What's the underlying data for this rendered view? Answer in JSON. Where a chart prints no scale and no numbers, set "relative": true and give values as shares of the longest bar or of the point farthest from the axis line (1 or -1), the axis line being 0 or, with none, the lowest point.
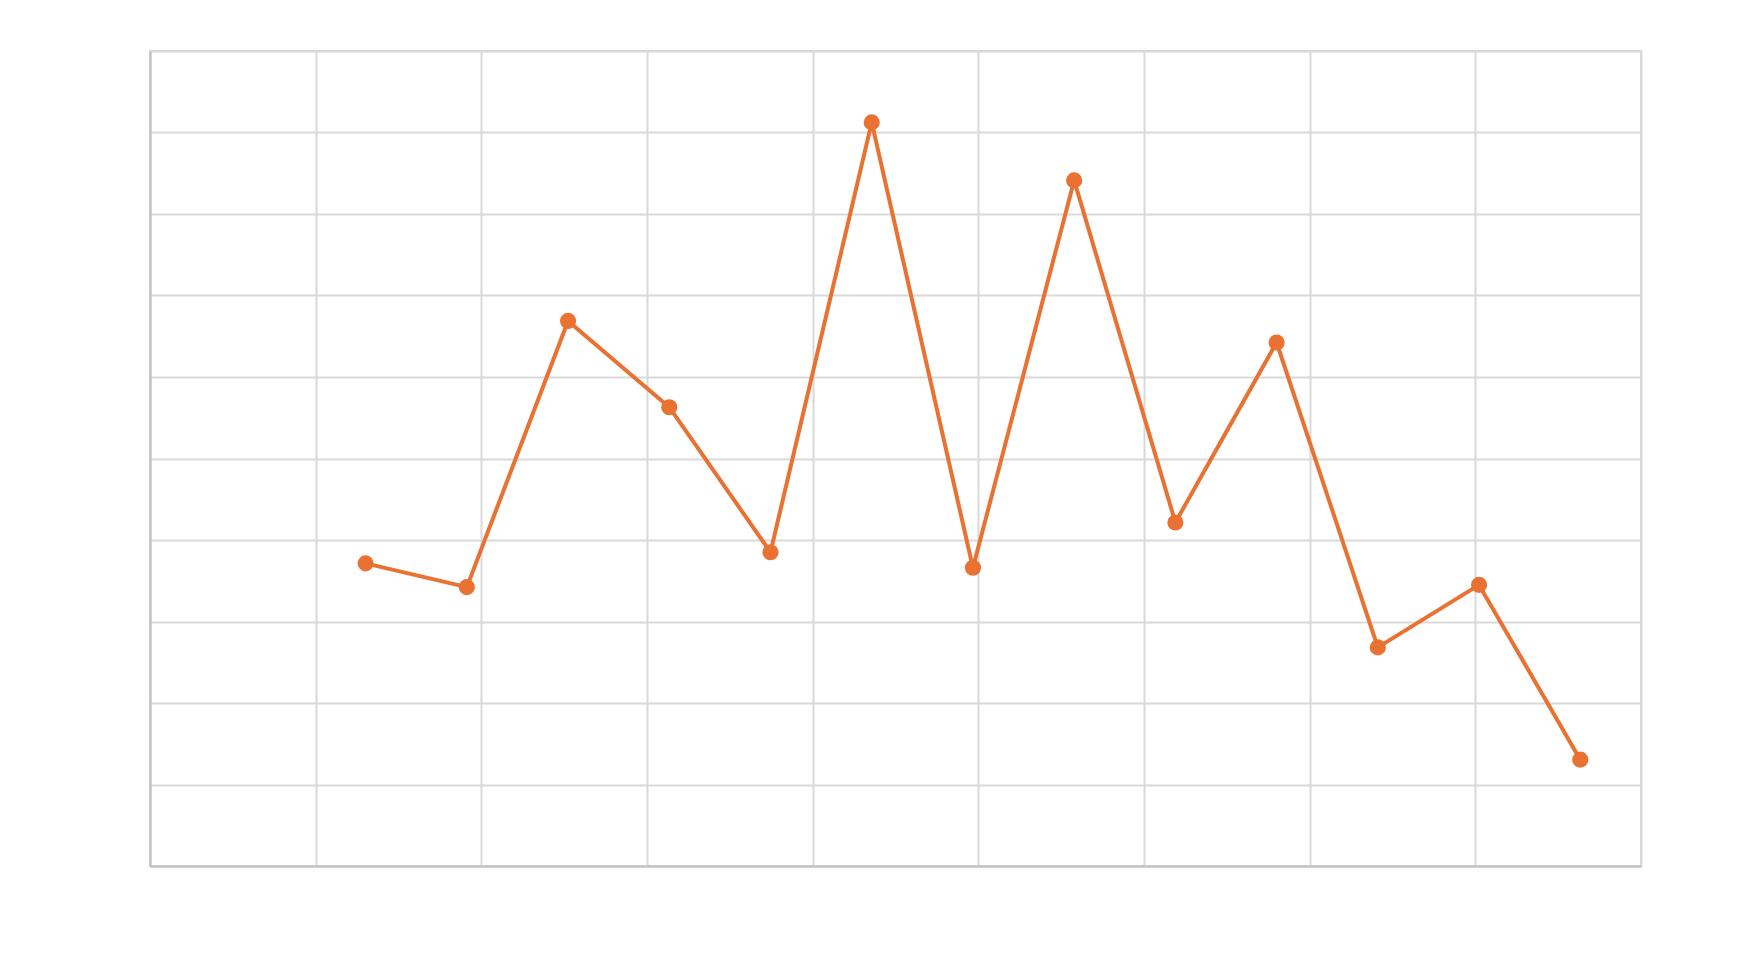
{
  "chart_data": {
    "type": "line",
    "relative": true,
    "categories": [
      null,
      null,
      null,
      null,
      null,
      null,
      null,
      null,
      null,
      null,
      null,
      null,
      null
    ],
    "series": [
      {
        "color": "#e97132",
        "values": [
          0.407,
          0.375,
          0.733,
          0.617,
          0.422,
          1,
          0.401,
          0.922,
          0.462,
          0.704,
          0.294,
          0.378,
          0.143
        ]
      }
    ],
    "grid": true,
    "marker": "circle",
    "line_style": "solid",
    "legend": false,
    "tick_labels": false
  }
}
